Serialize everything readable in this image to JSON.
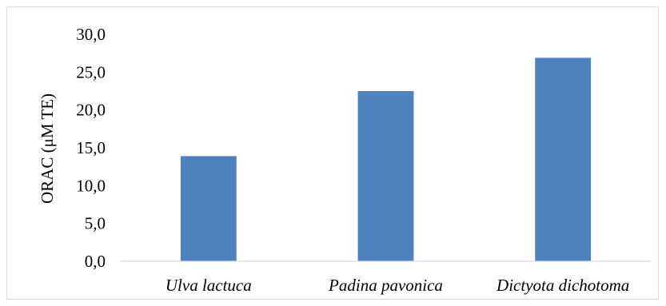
{
  "chart_data": {
    "type": "bar",
    "categories": [
      "Ulva lactuca",
      "Padina pavonica",
      "Dictyota dichotoma"
    ],
    "values": [
      13.9,
      22.5,
      26.9
    ],
    "title": "",
    "xlabel": "",
    "ylabel": "ORAC (μM TE)",
    "ylim": [
      0,
      30
    ],
    "yticks": [
      "0,0",
      "5,0",
      "10,0",
      "15,0",
      "20,0",
      "25,0",
      "30,0"
    ],
    "grid": false,
    "legend": "none",
    "bar_color": "#4f81bd",
    "axis_color": "#d9d9d9"
  }
}
